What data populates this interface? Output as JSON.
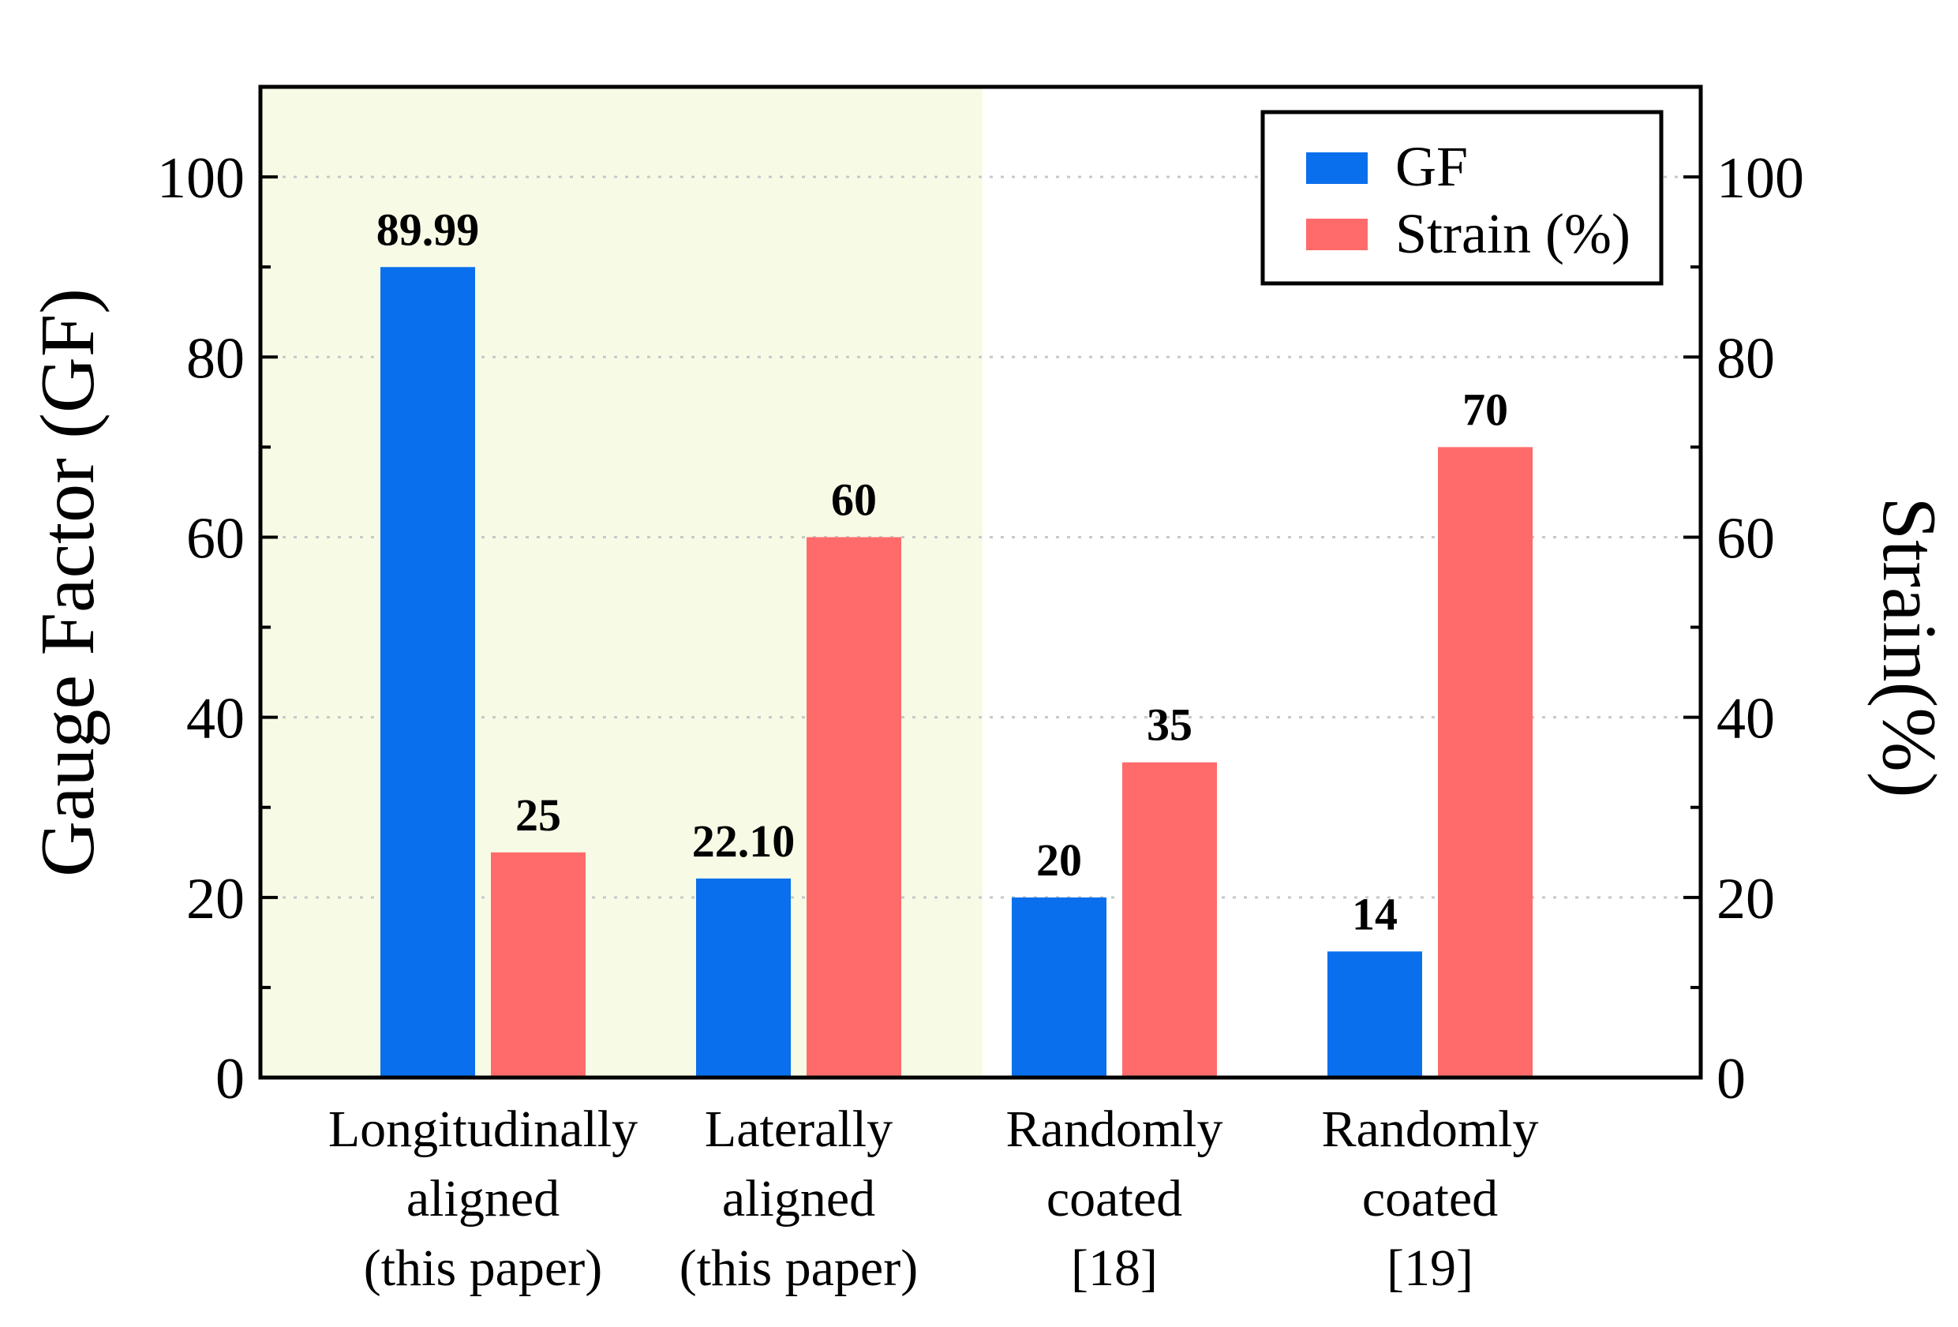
{
  "chart_data": {
    "type": "bar",
    "categories": [
      [
        "Longitudinally",
        "aligned",
        "(this paper)"
      ],
      [
        "Laterally",
        "aligned",
        "(this paper)"
      ],
      [
        "Randomly",
        "coated",
        "[18]"
      ],
      [
        "Randomly",
        "coated",
        "[19]"
      ]
    ],
    "series": [
      {
        "name": "GF",
        "axis": "left",
        "color": "#0a6fed",
        "values": [
          89.99,
          22.1,
          20,
          14
        ],
        "labels": [
          "89.99",
          "22.10",
          "20",
          "14"
        ]
      },
      {
        "name": "Strain (%)",
        "axis": "right",
        "color": "#ff6b6b",
        "values": [
          25,
          60,
          35,
          70
        ],
        "labels": [
          "25",
          "60",
          "35",
          "70"
        ]
      }
    ],
    "ylabel": "Gauge Factor (GF)",
    "y2label": "Strain(%)",
    "ylim": [
      0,
      110
    ],
    "y2lim": [
      0,
      110
    ],
    "yticks": [
      0,
      20,
      40,
      60,
      80,
      100
    ],
    "grid": true,
    "legend_position": "top-right",
    "highlight_color": "#f7fbe6",
    "highlight_categories": [
      0,
      1
    ]
  }
}
